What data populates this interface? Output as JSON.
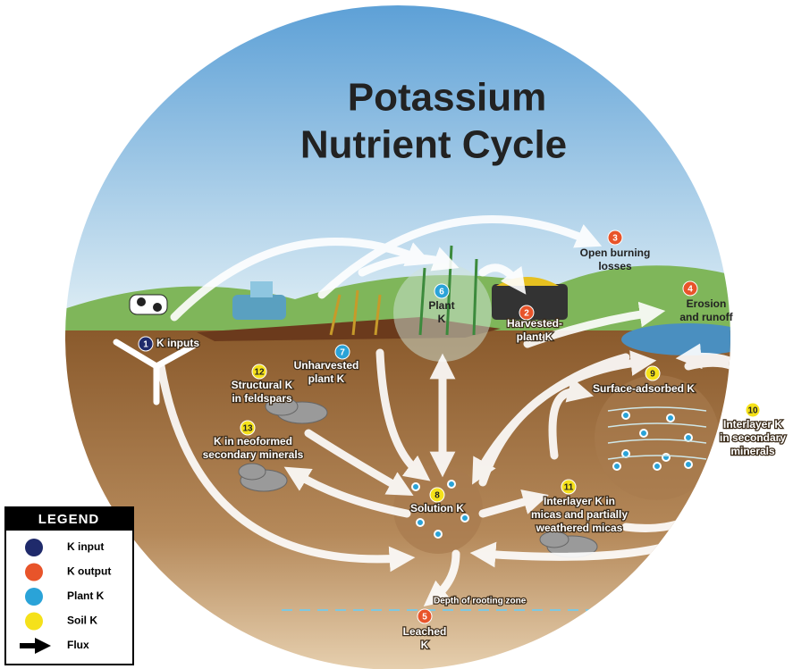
{
  "title": {
    "lines": [
      "Potassium",
      "Nutrient Cycle"
    ]
  },
  "nodes": [
    {
      "number": "1",
      "lines": [
        "K inputs"
      ],
      "color": "#1f2a6b"
    },
    {
      "number": "2",
      "lines": [
        "Harvested-",
        "plant K"
      ],
      "color": "#e8542a"
    },
    {
      "number": "3",
      "lines": [
        "Open burning",
        "losses"
      ],
      "color": "#e8542a"
    },
    {
      "number": "4",
      "lines": [
        "Erosion",
        "and runoff"
      ],
      "color": "#e8542a"
    },
    {
      "number": "5",
      "lines": [
        "Leached",
        "K"
      ],
      "color": "#e8542a"
    },
    {
      "number": "6",
      "lines": [
        "Plant",
        "K"
      ],
      "color": "#2aa3d8"
    },
    {
      "number": "7",
      "lines": [
        "Unharvested",
        "plant K"
      ],
      "color": "#2aa3d8"
    },
    {
      "number": "8",
      "lines": [
        "Solution K"
      ],
      "color": "#f5e11a"
    },
    {
      "number": "9",
      "lines": [
        "Surface-adsorbed K"
      ],
      "color": "#f5e11a"
    },
    {
      "number": "10",
      "lines": [
        "Interlayer K",
        "in secondary",
        "minerals"
      ],
      "color": "#f5e11a"
    },
    {
      "number": "11",
      "lines": [
        "Interlayer K in",
        "micas and partially",
        "weathered micas"
      ],
      "color": "#f5e11a"
    },
    {
      "number": "12",
      "lines": [
        "Structural K",
        "in feldspars"
      ],
      "color": "#f5e11a"
    },
    {
      "number": "13",
      "lines": [
        "K in neoformed",
        "secondary minerals"
      ],
      "color": "#f5e11a"
    }
  ],
  "depth_label": "Depth of rooting zone",
  "legend": {
    "title": "LEGEND",
    "items": [
      {
        "label": "K input",
        "color": "#1f2a6b"
      },
      {
        "label": "K output",
        "color": "#e8542a"
      },
      {
        "label": "Plant K",
        "color": "#2aa3d8"
      },
      {
        "label": "Soil K",
        "color": "#f5e11a"
      },
      {
        "label": "Flux"
      }
    ]
  }
}
